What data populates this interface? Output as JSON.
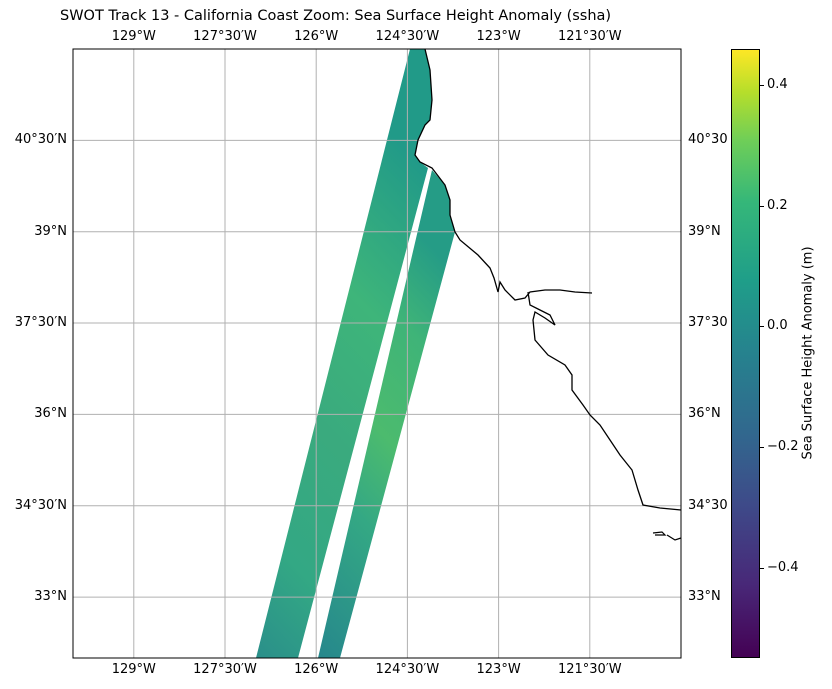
{
  "title": "SWOT Track 13 - California Coast Zoom: Sea Surface Height Anomaly (ssha)",
  "chart_data": {
    "type": "heatmap",
    "projection": "PlateCarree",
    "lon_range": [
      -130,
      -120
    ],
    "lat_range": [
      32,
      42
    ],
    "lon_ticks": [
      {
        "value": -129,
        "label": "129°W"
      },
      {
        "value": -127.5,
        "label": "127°30′W"
      },
      {
        "value": -126,
        "label": "126°W"
      },
      {
        "value": -124.5,
        "label": "124°30′W"
      },
      {
        "value": -123,
        "label": "123°W"
      },
      {
        "value": -121.5,
        "label": "121°30′W"
      }
    ],
    "lat_ticks_left": [
      {
        "value": 40.5,
        "label": "40°30′N"
      },
      {
        "value": 39,
        "label": "39°N"
      },
      {
        "value": 37.5,
        "label": "37°30′N"
      },
      {
        "value": 36,
        "label": "36°N"
      },
      {
        "value": 34.5,
        "label": "34°30′N"
      },
      {
        "value": 33,
        "label": "33°N"
      }
    ],
    "lat_ticks_right": [
      {
        "value": 40.5,
        "label": "40°30"
      },
      {
        "value": 39,
        "label": "39°N"
      },
      {
        "value": 37.5,
        "label": "37°30"
      },
      {
        "value": 36,
        "label": "36°N"
      },
      {
        "value": 34.5,
        "label": "34°30"
      },
      {
        "value": 33,
        "label": "33°N"
      }
    ],
    "grid": true,
    "colorbar": {
      "label": "Sea Surface Height Anomaly (m)",
      "colormap": "viridis",
      "range": [
        -0.55,
        0.46
      ],
      "ticks": [
        {
          "value": 0.4,
          "label": "0.4"
        },
        {
          "value": 0.2,
          "label": "0.2"
        },
        {
          "value": 0.0,
          "label": "0.0"
        },
        {
          "value": -0.2,
          "label": "−0.2"
        },
        {
          "value": -0.4,
          "label": "−0.4"
        }
      ]
    },
    "typical_values": [
      0.0,
      0.15
    ]
  }
}
